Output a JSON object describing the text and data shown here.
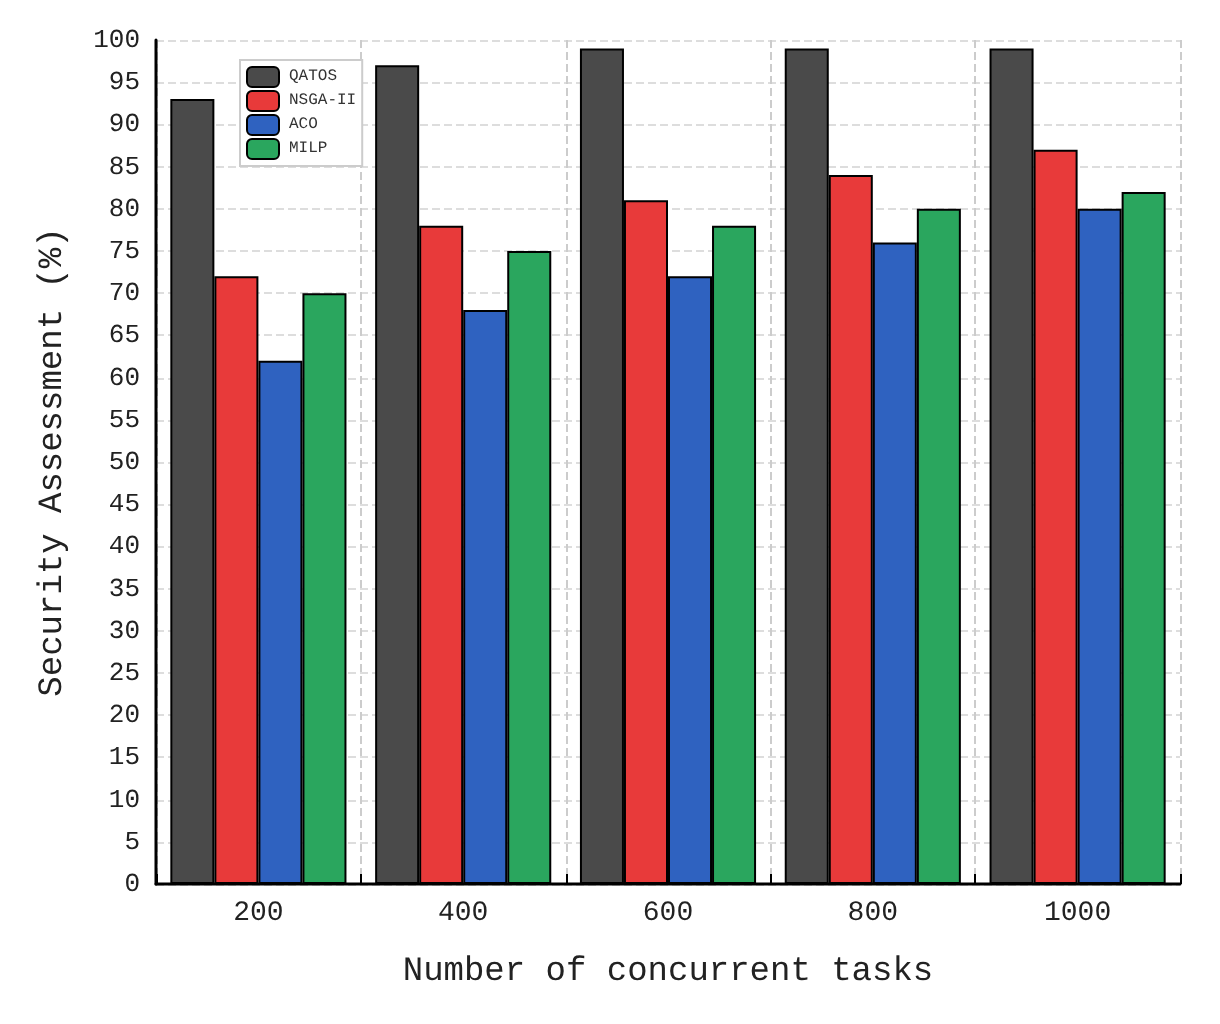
{
  "chart_data": {
    "type": "bar",
    "xlabel": "Number of concurrent tasks",
    "ylabel": "Security Assessment (%)",
    "categories": [
      "200",
      "400",
      "600",
      "800",
      "1000"
    ],
    "series": [
      {
        "name": "QATOS",
        "color": "#4a4a4a",
        "values": [
          93,
          97,
          99,
          99,
          99
        ]
      },
      {
        "name": "NSGA-II",
        "color": "#e83a3a",
        "values": [
          72,
          78,
          81,
          84,
          87
        ]
      },
      {
        "name": "ACO",
        "color": "#2f62c0",
        "values": [
          62,
          68,
          72,
          76,
          80
        ]
      },
      {
        "name": "MILP",
        "color": "#2aa65e",
        "values": [
          70,
          75,
          78,
          80,
          82
        ]
      }
    ],
    "ylim": [
      0,
      100
    ],
    "yticks": [
      0,
      5,
      10,
      15,
      20,
      25,
      30,
      35,
      40,
      45,
      50,
      55,
      60,
      65,
      70,
      75,
      80,
      85,
      90,
      95,
      100
    ],
    "grid": true,
    "legend": "top left"
  }
}
